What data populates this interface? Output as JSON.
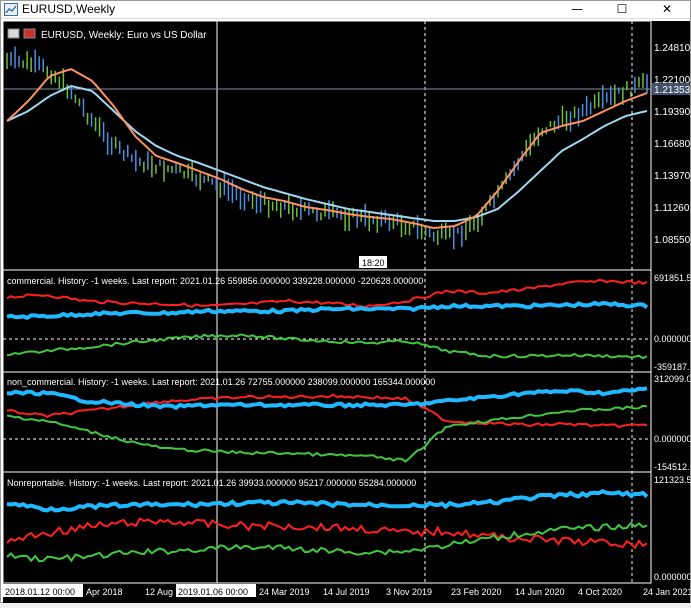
{
  "window": {
    "title": "EURUSD,Weekly",
    "minimize_glyph": "—",
    "maximize_glyph": "☐",
    "close_glyph": "✕"
  },
  "main_chart": {
    "symbol_label": "EURUSD, Weekly:  Euro vs US Dollar",
    "price_levels": [
      "1.24810",
      "1.22100",
      "1.19390",
      "1.16680",
      "1.13970",
      "1.11260",
      "1.08550"
    ],
    "current_price": "1.21353",
    "crosshair_time": "18:20",
    "colors": {
      "ma_fast": "#ff9060",
      "ma_slow": "#9fd8f0",
      "bull": "#4a90e2",
      "bear": "#6fbf3f"
    }
  },
  "indicators": [
    {
      "label": "commercial. History: -1 weeks. Last report: 2021.01.26    559856.000000  339228.000000  -220628.000000",
      "scale": [
        "691851.5",
        "0.000000",
        "-359187."
      ]
    },
    {
      "label": "non_commercial. History: -1 weeks. Last report: 2021.01.26    72755.000000  238099.000000  165344.000000",
      "scale": [
        "312099.0",
        "0.000000",
        "-154512."
      ]
    },
    {
      "label": "Nonreportable. History: -1 weeks. Last report: 2021.01.26    39933.000000  95217.000000  55284.000000",
      "scale": [
        "121323.5",
        "0.000000"
      ]
    }
  ],
  "time_axis": {
    "labels": [
      "Apr 2018",
      "12 Aug 2018",
      "24 Mar 2019",
      "14 Jul 2019",
      "3 Nov 2019",
      "23 Feb 2020",
      "14 Jun 2020",
      "4 Oct 2020",
      "24 Jan 2021"
    ],
    "highlight_start": "2018.01.12 00:00",
    "highlight_cursor": "2019.01.06 00:00"
  },
  "series_colors": {
    "line_red": "#ff2020",
    "line_blue": "#20b8ff",
    "line_green": "#40c840",
    "grid": "#ffffff"
  }
}
